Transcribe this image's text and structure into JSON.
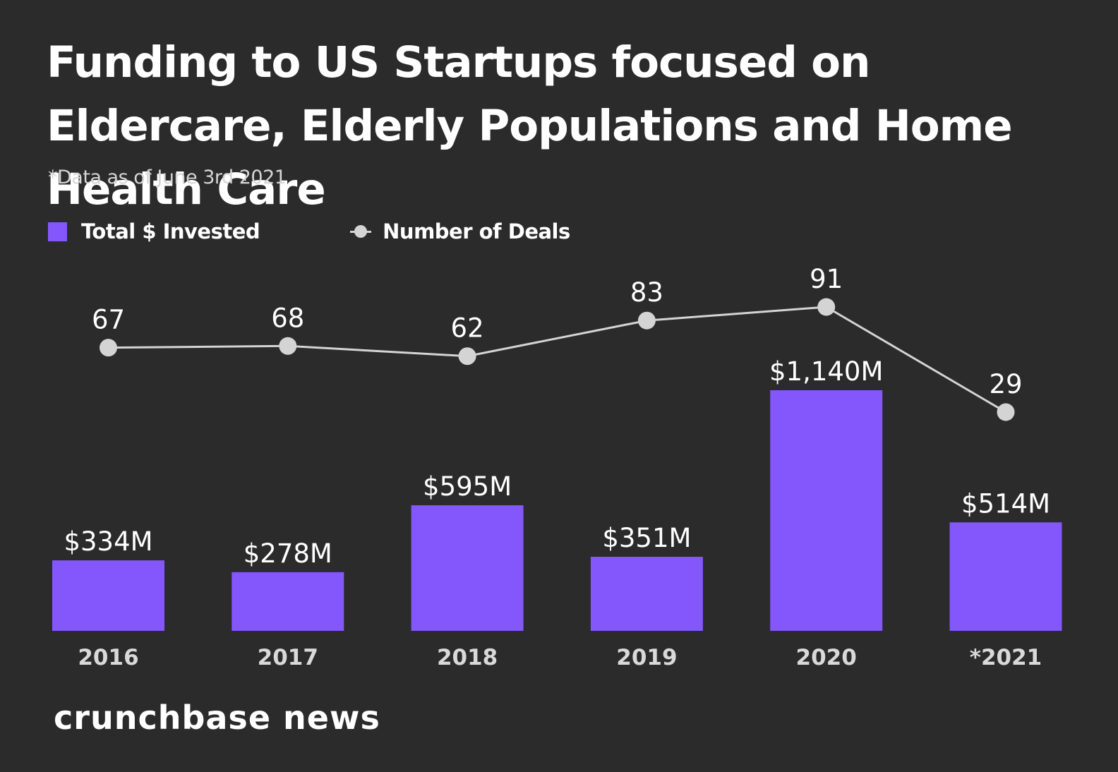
{
  "chart_data": {
    "type": "bar",
    "title": "Funding to US Startups focused on Eldercare, Elderly Populations and Home Health Care",
    "subtitle": "*Data as of June 3rd 2021",
    "categories": [
      "2016",
      "2017",
      "2018",
      "2019",
      "2020",
      "*2021"
    ],
    "series": [
      {
        "name": "Total $ Invested",
        "type": "bar",
        "values": [
          334,
          278,
          595,
          351,
          1140,
          514
        ],
        "labels": [
          "$334M",
          "$278M",
          "$595M",
          "$351M",
          "$1,140M",
          "$514M"
        ],
        "color": "#8357fc"
      },
      {
        "name": "Number of Deals",
        "type": "line",
        "values": [
          67,
          68,
          62,
          83,
          91,
          29
        ],
        "labels": [
          "67",
          "68",
          "62",
          "83",
          "91",
          "29"
        ],
        "color": "#d4d4d4"
      }
    ],
    "legend_position": "top-left",
    "grid": false
  },
  "brand": "crunchbase news"
}
